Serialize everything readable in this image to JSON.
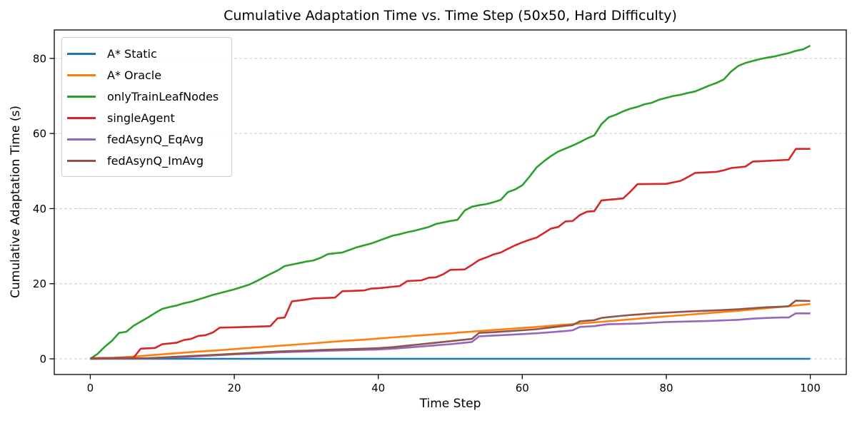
{
  "chart_data": {
    "type": "line",
    "title": "Cumulative Adaptation Time vs. Time Step (50x50, Hard Difficulty)",
    "xlabel": "Time Step",
    "ylabel": "Cumulative Adaptation Time (s)",
    "xlim": [
      -5,
      105
    ],
    "ylim": [
      -4.17,
      87.57
    ],
    "xticks": [
      0,
      20,
      40,
      60,
      80,
      100
    ],
    "yticks": [
      0,
      20,
      40,
      60,
      80
    ],
    "grid": "horizontal-dashed",
    "grid_color": "#c9c9c9",
    "legend_position": "upper-left",
    "series": [
      {
        "name": "A* Static",
        "color": "#1f77b4",
        "points": [
          [
            0,
            0
          ],
          [
            50,
            0
          ],
          [
            100,
            0
          ]
        ]
      },
      {
        "name": "A* Oracle",
        "color": "#ff7f0e",
        "points": [
          [
            0,
            0
          ],
          [
            2,
            0.1
          ],
          [
            4,
            0.35
          ],
          [
            6,
            0.6
          ],
          [
            8,
            0.9
          ],
          [
            10,
            1.2
          ],
          [
            14,
            1.8
          ],
          [
            18,
            2.3
          ],
          [
            22,
            2.9
          ],
          [
            26,
            3.45
          ],
          [
            30,
            4.0
          ],
          [
            34,
            4.6
          ],
          [
            38,
            5.1
          ],
          [
            42,
            5.7
          ],
          [
            46,
            6.25
          ],
          [
            50,
            6.8
          ],
          [
            54,
            7.4
          ],
          [
            58,
            7.95
          ],
          [
            62,
            8.5
          ],
          [
            66,
            9.1
          ],
          [
            70,
            9.7
          ],
          [
            74,
            10.35
          ],
          [
            78,
            11.0
          ],
          [
            82,
            11.6
          ],
          [
            86,
            12.2
          ],
          [
            90,
            12.8
          ],
          [
            94,
            13.5
          ],
          [
            97,
            14.0
          ],
          [
            100,
            14.6
          ]
        ]
      },
      {
        "name": "onlyTrainLeafNodes",
        "color": "#2ca02c",
        "points": [
          [
            0,
            0
          ],
          [
            1,
            1.3
          ],
          [
            2,
            3.2
          ],
          [
            3,
            4.8
          ],
          [
            4,
            6.9
          ],
          [
            5,
            7.2
          ],
          [
            6,
            8.8
          ],
          [
            7,
            9.9
          ],
          [
            8,
            11.0
          ],
          [
            9,
            12.2
          ],
          [
            10,
            13.3
          ],
          [
            11,
            13.8
          ],
          [
            12,
            14.2
          ],
          [
            13,
            14.8
          ],
          [
            14,
            15.2
          ],
          [
            15,
            15.8
          ],
          [
            16,
            16.4
          ],
          [
            17,
            17.0
          ],
          [
            18,
            17.5
          ],
          [
            19,
            18.0
          ],
          [
            20,
            18.5
          ],
          [
            21,
            19.1
          ],
          [
            22,
            19.7
          ],
          [
            23,
            20.6
          ],
          [
            24,
            21.6
          ],
          [
            25,
            22.6
          ],
          [
            26,
            23.5
          ],
          [
            27,
            24.7
          ],
          [
            28,
            25.1
          ],
          [
            29,
            25.5
          ],
          [
            30,
            25.9
          ],
          [
            31,
            26.2
          ],
          [
            32,
            26.9
          ],
          [
            33,
            27.9
          ],
          [
            34,
            28.1
          ],
          [
            35,
            28.3
          ],
          [
            36,
            29.0
          ],
          [
            37,
            29.7
          ],
          [
            38,
            30.2
          ],
          [
            39,
            30.7
          ],
          [
            40,
            31.4
          ],
          [
            41,
            32.1
          ],
          [
            42,
            32.8
          ],
          [
            43,
            33.2
          ],
          [
            44,
            33.7
          ],
          [
            45,
            34.1
          ],
          [
            46,
            34.6
          ],
          [
            47,
            35.1
          ],
          [
            48,
            35.9
          ],
          [
            49,
            36.3
          ],
          [
            50,
            36.7
          ],
          [
            51,
            37.0
          ],
          [
            52,
            39.5
          ],
          [
            53,
            40.5
          ],
          [
            54,
            40.9
          ],
          [
            55,
            41.2
          ],
          [
            56,
            41.7
          ],
          [
            57,
            42.3
          ],
          [
            58,
            44.4
          ],
          [
            59,
            45.1
          ],
          [
            60,
            46.2
          ],
          [
            61,
            48.5
          ],
          [
            62,
            51.0
          ],
          [
            63,
            52.6
          ],
          [
            64,
            54.0
          ],
          [
            65,
            55.2
          ],
          [
            66,
            56.0
          ],
          [
            67,
            56.8
          ],
          [
            68,
            57.7
          ],
          [
            69,
            58.7
          ],
          [
            70,
            59.5
          ],
          [
            71,
            62.5
          ],
          [
            72,
            64.3
          ],
          [
            73,
            65.0
          ],
          [
            74,
            65.9
          ],
          [
            75,
            66.6
          ],
          [
            76,
            67.1
          ],
          [
            77,
            67.8
          ],
          [
            78,
            68.2
          ],
          [
            79,
            69.0
          ],
          [
            80,
            69.5
          ],
          [
            81,
            70.0
          ],
          [
            82,
            70.3
          ],
          [
            83,
            70.8
          ],
          [
            84,
            71.2
          ],
          [
            85,
            72.0
          ],
          [
            86,
            72.8
          ],
          [
            87,
            73.5
          ],
          [
            88,
            74.4
          ],
          [
            89,
            76.5
          ],
          [
            90,
            78.0
          ],
          [
            91,
            78.8
          ],
          [
            92,
            79.3
          ],
          [
            93,
            79.8
          ],
          [
            94,
            80.2
          ],
          [
            95,
            80.5
          ],
          [
            96,
            81.0
          ],
          [
            97,
            81.4
          ],
          [
            98,
            82.0
          ],
          [
            99,
            82.4
          ],
          [
            100,
            83.4
          ]
        ]
      },
      {
        "name": "singleAgent",
        "color": "#d62728",
        "points": [
          [
            0,
            0.2
          ],
          [
            4,
            0.25
          ],
          [
            6,
            0.3
          ],
          [
            7,
            2.7
          ],
          [
            9,
            2.9
          ],
          [
            10,
            3.9
          ],
          [
            12,
            4.3
          ],
          [
            13,
            5.0
          ],
          [
            14,
            5.3
          ],
          [
            15,
            6.1
          ],
          [
            16,
            6.3
          ],
          [
            17,
            7.0
          ],
          [
            18,
            8.3
          ],
          [
            22,
            8.5
          ],
          [
            25,
            8.7
          ],
          [
            26,
            10.8
          ],
          [
            27,
            11.0
          ],
          [
            28,
            15.3
          ],
          [
            30,
            15.8
          ],
          [
            31,
            16.1
          ],
          [
            34,
            16.3
          ],
          [
            35,
            18.0
          ],
          [
            38,
            18.2
          ],
          [
            39,
            18.7
          ],
          [
            40,
            18.8
          ],
          [
            42,
            19.2
          ],
          [
            43,
            19.4
          ],
          [
            44,
            20.7
          ],
          [
            46,
            20.9
          ],
          [
            47,
            21.6
          ],
          [
            48,
            21.7
          ],
          [
            49,
            22.5
          ],
          [
            50,
            23.7
          ],
          [
            52,
            23.8
          ],
          [
            53,
            25.0
          ],
          [
            54,
            26.3
          ],
          [
            55,
            27.0
          ],
          [
            56,
            27.8
          ],
          [
            57,
            28.3
          ],
          [
            58,
            29.3
          ],
          [
            59,
            30.2
          ],
          [
            60,
            31.0
          ],
          [
            61,
            31.7
          ],
          [
            62,
            32.3
          ],
          [
            63,
            33.5
          ],
          [
            64,
            34.7
          ],
          [
            65,
            35.1
          ],
          [
            66,
            36.6
          ],
          [
            67,
            36.7
          ],
          [
            68,
            38.3
          ],
          [
            69,
            39.2
          ],
          [
            70,
            39.3
          ],
          [
            71,
            42.2
          ],
          [
            74,
            42.7
          ],
          [
            75,
            44.5
          ],
          [
            76,
            46.5
          ],
          [
            80,
            46.6
          ],
          [
            81,
            47.0
          ],
          [
            82,
            47.4
          ],
          [
            83,
            48.4
          ],
          [
            84,
            49.5
          ],
          [
            87,
            49.8
          ],
          [
            88,
            50.2
          ],
          [
            89,
            50.8
          ],
          [
            91,
            51.2
          ],
          [
            92,
            52.5
          ],
          [
            97,
            53.0
          ],
          [
            98,
            55.9
          ],
          [
            100,
            55.9
          ]
        ]
      },
      {
        "name": "fedAsynQ_EqAvg",
        "color": "#9467bd",
        "points": [
          [
            0,
            0
          ],
          [
            4,
            0.1
          ],
          [
            8,
            0.15
          ],
          [
            10,
            0.3
          ],
          [
            12,
            0.45
          ],
          [
            14,
            0.6
          ],
          [
            16,
            0.8
          ],
          [
            18,
            1.0
          ],
          [
            20,
            1.2
          ],
          [
            22,
            1.35
          ],
          [
            24,
            1.5
          ],
          [
            26,
            1.7
          ],
          [
            28,
            1.85
          ],
          [
            30,
            1.95
          ],
          [
            32,
            2.1
          ],
          [
            34,
            2.2
          ],
          [
            36,
            2.3
          ],
          [
            38,
            2.4
          ],
          [
            40,
            2.5
          ],
          [
            42,
            2.7
          ],
          [
            44,
            3.0
          ],
          [
            46,
            3.3
          ],
          [
            48,
            3.6
          ],
          [
            50,
            3.9
          ],
          [
            52,
            4.3
          ],
          [
            53,
            4.5
          ],
          [
            54,
            6.0
          ],
          [
            56,
            6.2
          ],
          [
            58,
            6.4
          ],
          [
            60,
            6.6
          ],
          [
            62,
            6.8
          ],
          [
            64,
            7.1
          ],
          [
            66,
            7.4
          ],
          [
            67,
            7.6
          ],
          [
            68,
            8.5
          ],
          [
            70,
            8.7
          ],
          [
            71,
            9.0
          ],
          [
            72,
            9.2
          ],
          [
            74,
            9.3
          ],
          [
            76,
            9.4
          ],
          [
            78,
            9.6
          ],
          [
            80,
            9.8
          ],
          [
            82,
            9.9
          ],
          [
            84,
            10.0
          ],
          [
            86,
            10.1
          ],
          [
            88,
            10.25
          ],
          [
            90,
            10.4
          ],
          [
            92,
            10.7
          ],
          [
            94,
            10.9
          ],
          [
            96,
            11.0
          ],
          [
            97,
            11.0
          ],
          [
            98,
            12.1
          ],
          [
            100,
            12.1
          ]
        ]
      },
      {
        "name": "fedAsynQ_ImAvg",
        "color": "#8c564b",
        "points": [
          [
            0,
            0
          ],
          [
            4,
            0.1
          ],
          [
            8,
            0.2
          ],
          [
            10,
            0.35
          ],
          [
            12,
            0.55
          ],
          [
            14,
            0.75
          ],
          [
            16,
            0.95
          ],
          [
            18,
            1.15
          ],
          [
            20,
            1.35
          ],
          [
            22,
            1.55
          ],
          [
            24,
            1.75
          ],
          [
            26,
            1.95
          ],
          [
            28,
            2.1
          ],
          [
            30,
            2.2
          ],
          [
            32,
            2.35
          ],
          [
            34,
            2.5
          ],
          [
            36,
            2.6
          ],
          [
            38,
            2.7
          ],
          [
            40,
            2.85
          ],
          [
            42,
            3.1
          ],
          [
            44,
            3.5
          ],
          [
            46,
            3.9
          ],
          [
            48,
            4.3
          ],
          [
            50,
            4.7
          ],
          [
            52,
            5.1
          ],
          [
            53,
            5.3
          ],
          [
            54,
            6.9
          ],
          [
            56,
            7.1
          ],
          [
            58,
            7.35
          ],
          [
            60,
            7.6
          ],
          [
            62,
            7.9
          ],
          [
            64,
            8.35
          ],
          [
            66,
            8.8
          ],
          [
            67,
            9.0
          ],
          [
            68,
            10.0
          ],
          [
            70,
            10.3
          ],
          [
            71,
            10.9
          ],
          [
            72,
            11.1
          ],
          [
            74,
            11.5
          ],
          [
            76,
            11.8
          ],
          [
            78,
            12.1
          ],
          [
            80,
            12.3
          ],
          [
            82,
            12.5
          ],
          [
            84,
            12.7
          ],
          [
            86,
            12.85
          ],
          [
            88,
            13.0
          ],
          [
            90,
            13.2
          ],
          [
            92,
            13.5
          ],
          [
            94,
            13.75
          ],
          [
            96,
            13.9
          ],
          [
            97,
            14.0
          ],
          [
            98,
            15.5
          ],
          [
            100,
            15.4
          ]
        ]
      }
    ]
  }
}
